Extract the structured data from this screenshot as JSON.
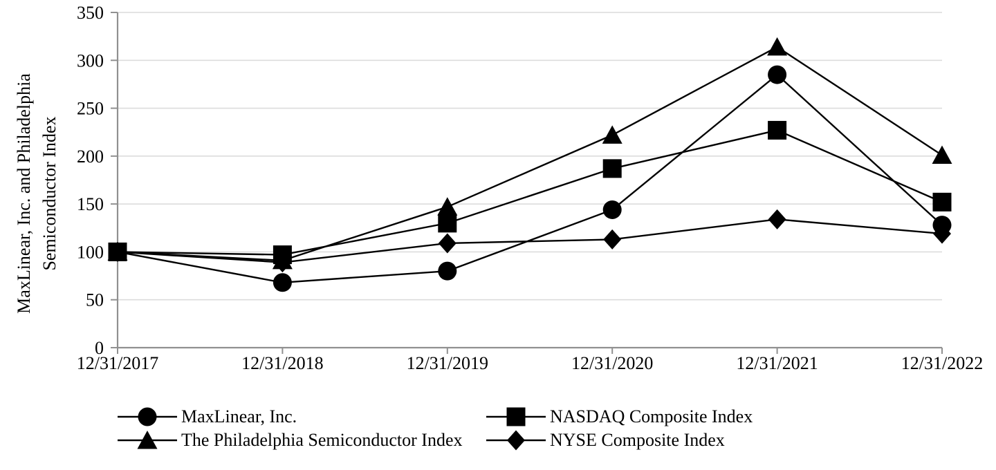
{
  "chart_data": {
    "type": "line",
    "title": "",
    "y_axis_title_lines": [
      "MaxLinear, Inc. and Philadelphia",
      "Semiconductor Index"
    ],
    "categories": [
      "12/31/2017",
      "12/31/2018",
      "12/31/2019",
      "12/31/2020",
      "12/31/2021",
      "12/31/2022"
    ],
    "ylim": [
      0,
      350
    ],
    "ytick_labels": [
      "0",
      "50",
      "100",
      "150",
      "200",
      "250",
      "300",
      "350"
    ],
    "grid": true,
    "legend_position": "bottom",
    "series": [
      {
        "name": "MaxLinear, Inc.",
        "marker": "circle",
        "values": [
          100,
          68,
          80,
          144,
          285,
          128
        ]
      },
      {
        "name": "NASDAQ Composite Index",
        "marker": "square",
        "values": [
          100,
          97,
          130,
          187,
          227,
          152
        ]
      },
      {
        "name": "The Philadelphia Semiconductor Index",
        "marker": "triangle",
        "values": [
          100,
          91,
          147,
          222,
          314,
          201
        ]
      },
      {
        "name": "NYSE Composite Index",
        "marker": "diamond",
        "values": [
          100,
          89,
          109,
          113,
          134,
          119
        ]
      }
    ],
    "colors": {
      "series": "#000000",
      "gridline": "#dcdcdc",
      "axis": "#909090",
      "text": "#000000"
    }
  }
}
